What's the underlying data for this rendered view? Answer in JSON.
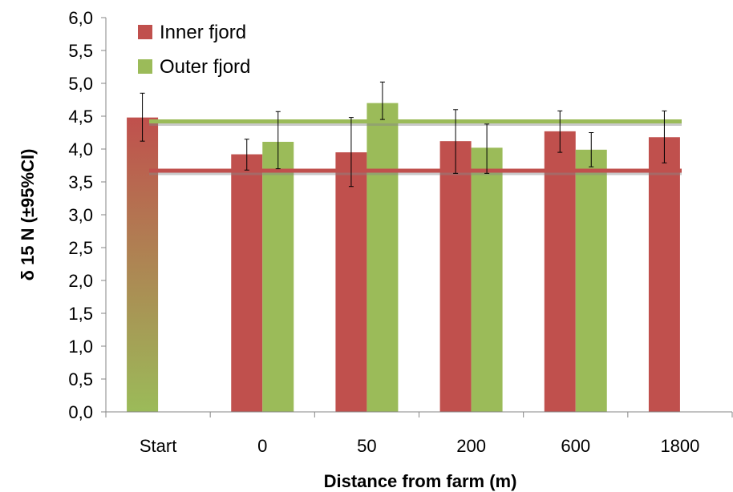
{
  "chart_data": {
    "type": "bar",
    "categories": [
      "Start",
      "0",
      "50",
      "200",
      "600",
      "1800"
    ],
    "series": [
      {
        "name": "Inner fjord",
        "color": "#c0504d",
        "values": [
          4.48,
          3.92,
          3.95,
          4.12,
          4.27,
          4.18
        ],
        "ci_low": [
          4.12,
          3.68,
          3.43,
          3.63,
          3.95,
          3.79
        ],
        "ci_high": [
          4.85,
          4.15,
          4.48,
          4.6,
          4.58,
          4.58
        ]
      },
      {
        "name": "Outer fjord",
        "color": "#9bbb59",
        "values": [
          null,
          4.11,
          4.7,
          4.02,
          3.99,
          null
        ],
        "ci_low": [
          null,
          3.7,
          4.45,
          3.63,
          3.73,
          null
        ],
        "ci_high": [
          null,
          4.57,
          5.02,
          4.38,
          4.25,
          null
        ]
      }
    ],
    "reference_lines": [
      {
        "series": "Outer fjord",
        "y": 4.42,
        "color": "#9bbb59"
      },
      {
        "series": "Inner fjord",
        "y": 3.67,
        "color": "#c0504d"
      }
    ],
    "first_bar_gradient": {
      "top": "#c0504d",
      "bottom": "#9bbb59"
    },
    "title": "",
    "xlabel": "Distance from farm (m)",
    "ylabel": "δ 15 N (±95%CI)",
    "ylim": [
      0,
      6
    ],
    "yticks": [
      "0,0",
      "0,5",
      "1,0",
      "1,5",
      "2,0",
      "2,5",
      "3,0",
      "3,5",
      "4,0",
      "4,5",
      "5,0",
      "5,5",
      "6,0"
    ],
    "grid": false,
    "legend": "top-left"
  }
}
